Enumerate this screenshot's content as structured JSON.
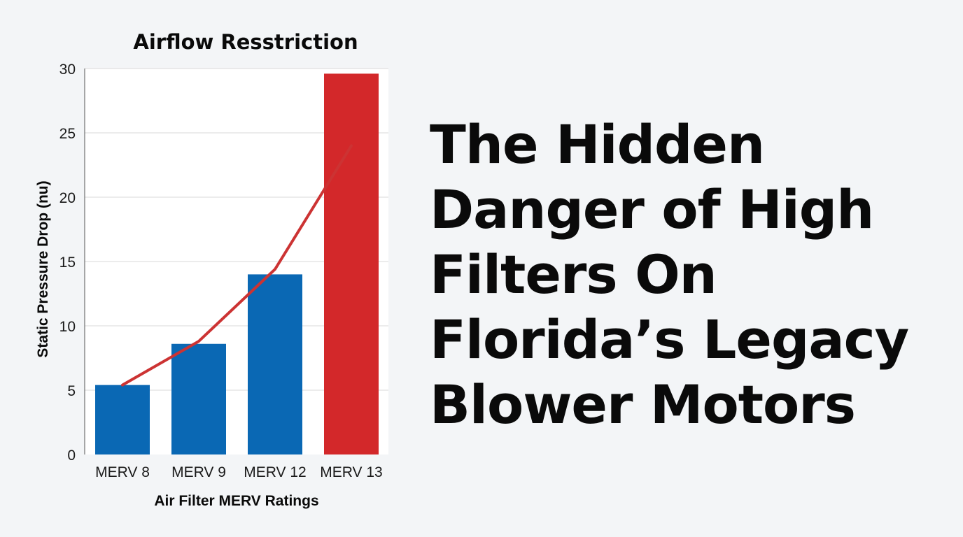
{
  "headline": {
    "lines": [
      "The Hidden",
      "Danger of High",
      "Filters On",
      "Florida’s Legacy",
      "Blower Motors"
    ]
  },
  "colors": {
    "background": "#f3f5f7",
    "bar_blue": "#0a68b4",
    "bar_red": "#d3282a",
    "trend_line": "#cc3333",
    "text": "#0a0a0a"
  },
  "chart_data": {
    "type": "bar",
    "title": "Airflow Resstriction",
    "xlabel": "Air Filter MERV Ratings",
    "ylabel": "Static Pressure Drop (nu)",
    "categories": [
      "MERV 8",
      "MERV 9",
      "MERV 12",
      "MERV 13"
    ],
    "values": [
      5.4,
      8.6,
      14.0,
      29.6
    ],
    "bar_colors": [
      "#0a68b4",
      "#0a68b4",
      "#0a68b4",
      "#d3282a"
    ],
    "trend_line": [
      5.4,
      8.8,
      14.4,
      24.0
    ],
    "ylim": [
      0,
      30
    ],
    "yticks": [
      0,
      5,
      10,
      15,
      20,
      25,
      30
    ],
    "grid": true,
    "legend": "none"
  }
}
